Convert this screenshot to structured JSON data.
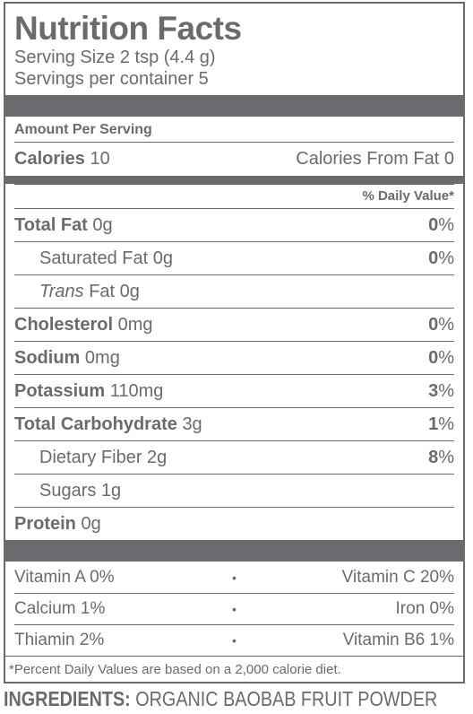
{
  "title": "Nutrition Facts",
  "serving_size": "Serving Size 2 tsp (4.4 g)",
  "servings_per_container": "Servings per container 5",
  "amount_per_serving": "Amount Per Serving",
  "calories": {
    "label": "Calories",
    "value": "10",
    "from_fat_label": "Calories From Fat",
    "from_fat_value": "0"
  },
  "daily_value_header": "% Daily Value*",
  "nutrients": [
    {
      "name": "Total Fat",
      "amount": "0g",
      "dv": "0",
      "bold": true
    },
    {
      "name": "Saturated Fat",
      "amount": "0g",
      "dv": "0",
      "bold": false
    },
    {
      "name": "Trans",
      "name_rest": "Fat",
      "amount": "0g",
      "dv": "",
      "bold": false
    },
    {
      "name": "Cholesterol",
      "amount": "0mg",
      "dv": "0",
      "bold": true
    },
    {
      "name": "Sodium",
      "amount": "0mg",
      "dv": "0",
      "bold": true
    },
    {
      "name": "Potassium",
      "amount": "110mg",
      "dv": "3",
      "bold": true
    },
    {
      "name": "Total Carbohydrate",
      "amount": "3g",
      "dv": "1",
      "bold": true
    },
    {
      "name": "Dietary Fiber",
      "amount": "2g",
      "dv": "8",
      "bold": false
    },
    {
      "name": "Sugars",
      "amount": "1g",
      "dv": "",
      "bold": false
    },
    {
      "name": "Protein",
      "amount": "0g",
      "dv": "",
      "bold": true
    }
  ],
  "percent_sign": "%",
  "vitamins": [
    {
      "left": "Vitamin A 0%",
      "right": "Vitamin C 20%"
    },
    {
      "left": "Calcium 1%",
      "right": "Iron 0%"
    },
    {
      "left": "Thiamin 2%",
      "right": "Vitamin B6 1%"
    }
  ],
  "separator": "•",
  "footnote": "*Percent Daily Values are based on a 2,000 calorie diet.",
  "ingredients_label": "INGREDIENTS:",
  "ingredients_text": "ORGANIC BAOBAB FRUIT POWDER",
  "colors": {
    "ink": "#6b6b6f"
  }
}
